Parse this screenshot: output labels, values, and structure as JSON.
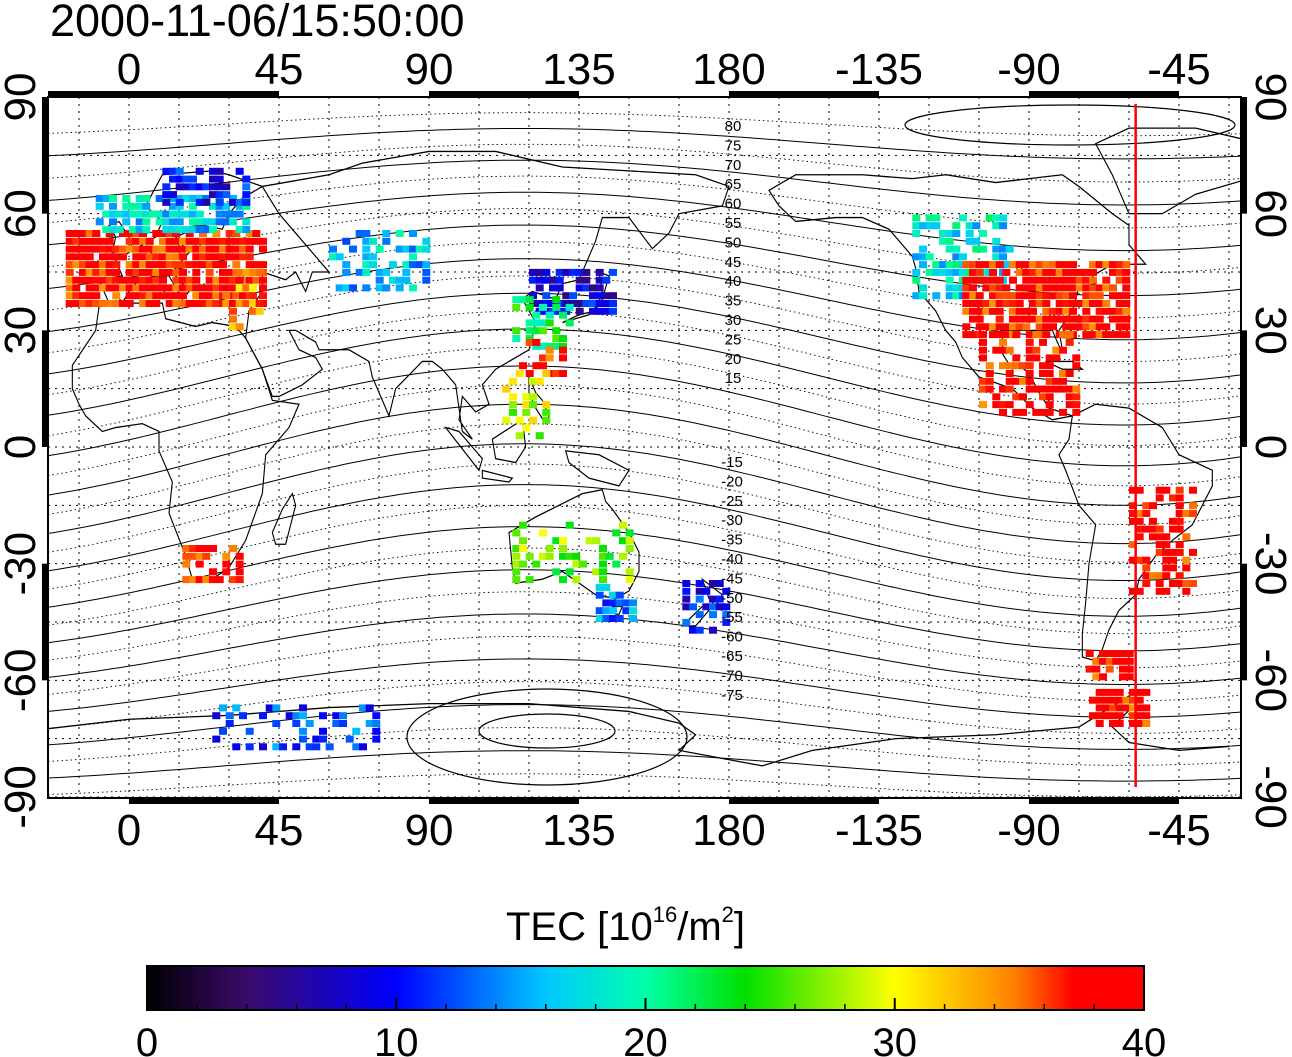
{
  "timestamp": "2000-11-06/15:50:00",
  "map": {
    "lon_ticks": [
      "0",
      "45",
      "90",
      "135",
      "180",
      "-135",
      "-90",
      "-45"
    ],
    "lat_ticks": [
      "90",
      "60",
      "30",
      "0",
      "-30",
      "-60",
      "-90"
    ],
    "magnetic_labels_north": [
      "80",
      "75",
      "70",
      "65",
      "60",
      "55",
      "50",
      "45",
      "40",
      "35",
      "30",
      "25",
      "20",
      "15"
    ],
    "magnetic_labels_south": [
      "-15",
      "-20",
      "-25",
      "-30",
      "-35",
      "-40",
      "-45",
      "-50",
      "-55",
      "-60",
      "-65",
      "-70",
      "-75"
    ],
    "marker_longitude": -58,
    "marker_color": "#ff0000"
  },
  "colorbar": {
    "title_main": "TEC  [10",
    "title_exp1": "16",
    "title_mid": "/m",
    "title_exp2": "2",
    "title_end": "]",
    "ticks": [
      "0",
      "10",
      "20",
      "30",
      "40"
    ],
    "min": 0,
    "max": 40
  },
  "tec_regions": [
    {
      "lon_min": -25,
      "lon_max": 40,
      "lat_min": 36,
      "lat_max": 56,
      "tec": 38,
      "density": 0.85
    },
    {
      "lon_min": -10,
      "lon_max": 35,
      "lat_min": 55,
      "lat_max": 65,
      "tec": 17,
      "density": 0.7
    },
    {
      "lon_min": 10,
      "lon_max": 35,
      "lat_min": 62,
      "lat_max": 71,
      "tec": 10,
      "density": 0.6
    },
    {
      "lon_min": 28,
      "lon_max": 40,
      "lat_min": 30,
      "lat_max": 45,
      "tec": 34,
      "density": 0.5
    },
    {
      "lon_min": 60,
      "lon_max": 90,
      "lat_min": 40,
      "lat_max": 55,
      "tec": 16,
      "density": 0.45
    },
    {
      "lon_min": 120,
      "lon_max": 145,
      "lat_min": 34,
      "lat_max": 46,
      "tec": 9,
      "density": 0.7
    },
    {
      "lon_min": 115,
      "lon_max": 132,
      "lat_min": 25,
      "lat_max": 38,
      "tec": 22,
      "density": 0.55
    },
    {
      "lon_min": 115,
      "lon_max": 130,
      "lat_min": 18,
      "lat_max": 28,
      "tec": 38,
      "density": 0.4
    },
    {
      "lon_min": 110,
      "lon_max": 125,
      "lat_min": 0,
      "lat_max": 20,
      "tec": 29,
      "density": 0.3
    },
    {
      "lon_min": -125,
      "lon_max": -95,
      "lat_min": 38,
      "lat_max": 60,
      "tec": 18,
      "density": 0.55
    },
    {
      "lon_min": -110,
      "lon_max": -60,
      "lat_min": 28,
      "lat_max": 48,
      "tec": 38,
      "density": 0.85
    },
    {
      "lon_min": -105,
      "lon_max": -75,
      "lat_min": 8,
      "lat_max": 30,
      "tec": 38,
      "density": 0.55
    },
    {
      "lon_min": -60,
      "lon_max": -40,
      "lat_min": -38,
      "lat_max": -10,
      "tec": 38,
      "density": 0.55
    },
    {
      "lon_min": -75,
      "lon_max": -60,
      "lat_min": -60,
      "lat_max": -52,
      "tec": 38,
      "density": 0.7
    },
    {
      "lon_min": -72,
      "lon_max": -55,
      "lat_min": -72,
      "lat_max": -62,
      "tec": 38,
      "density": 0.7
    },
    {
      "lon_min": 115,
      "lon_max": 150,
      "lat_min": -35,
      "lat_max": -20,
      "tec": 26,
      "density": 0.35
    },
    {
      "lon_min": 140,
      "lon_max": 152,
      "lat_min": -45,
      "lat_max": -35,
      "tec": 14,
      "density": 0.55
    },
    {
      "lon_min": 166,
      "lon_max": 180,
      "lat_min": -48,
      "lat_max": -35,
      "tec": 10,
      "density": 0.55
    },
    {
      "lon_min": 16,
      "lon_max": 33,
      "lat_min": -35,
      "lat_max": -25,
      "tec": 38,
      "density": 0.6
    },
    {
      "lon_min": 25,
      "lon_max": 75,
      "lat_min": -78,
      "lat_max": -66,
      "tec": 12,
      "density": 0.3
    }
  ]
}
